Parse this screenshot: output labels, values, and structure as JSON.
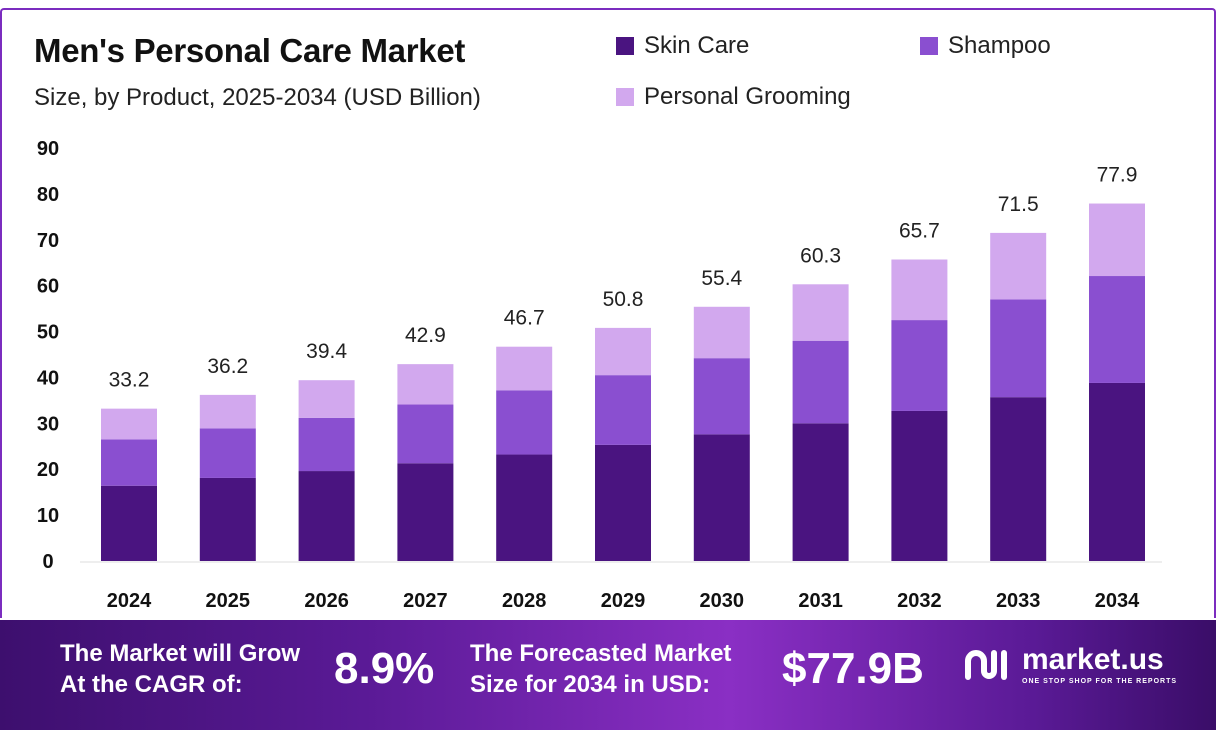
{
  "chart_data": {
    "type": "bar",
    "stacked": true,
    "title": "Men's Personal Care Market",
    "subtitle": "Size, by Product, 2025-2034 (USD Billion)",
    "categories": [
      "2024",
      "2025",
      "2026",
      "2027",
      "2028",
      "2029",
      "2030",
      "2031",
      "2032",
      "2033",
      "2034"
    ],
    "series": [
      {
        "name": "Skin Care",
        "color": "#4a1480",
        "values": [
          16.4,
          18.1,
          19.6,
          21.3,
          23.2,
          25.3,
          27.6,
          30.0,
          32.7,
          35.7,
          38.8
        ]
      },
      {
        "name": "Shampoo",
        "color": "#8a4fd0",
        "values": [
          10.1,
          10.8,
          11.6,
          12.8,
          14.0,
          15.2,
          16.6,
          18.0,
          19.8,
          21.3,
          23.3
        ]
      },
      {
        "name": "Personal Grooming",
        "color": "#d2a8ee",
        "values": [
          6.7,
          7.3,
          8.2,
          8.8,
          9.5,
          10.3,
          11.2,
          12.3,
          13.2,
          14.5,
          15.8
        ]
      }
    ],
    "totals": [
      "33.2",
      "36.2",
      "39.4",
      "42.9",
      "46.7",
      "50.8",
      "55.4",
      "60.3",
      "65.7",
      "71.5",
      "77.9"
    ],
    "yticks": [
      "0",
      "10",
      "20",
      "30",
      "40",
      "50",
      "60",
      "70",
      "80",
      "90"
    ],
    "ylim": [
      0,
      90
    ],
    "grid": false,
    "legend_position": "top-right"
  },
  "banner": {
    "cagr_label_line1": "The Market will Grow",
    "cagr_label_line2": "At the CAGR of:",
    "cagr_value": "8.9%",
    "forecast_label_line1": "The Forecasted Market",
    "forecast_label_line2": "Size for 2034 in USD:",
    "forecast_value": "$77.9B",
    "logo_name": "market.us",
    "logo_tagline": "ONE STOP SHOP FOR THE REPORTS"
  }
}
